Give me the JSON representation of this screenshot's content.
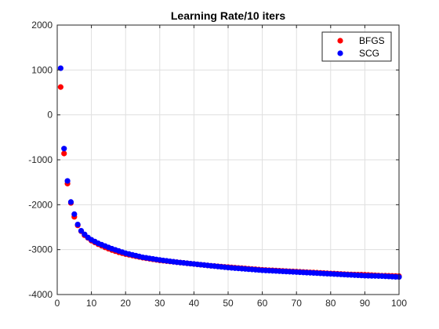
{
  "chart_data": {
    "type": "scatter",
    "title": "Learning Rate/10 iters",
    "xlabel": "",
    "ylabel": "",
    "xlim": [
      0,
      100
    ],
    "ylim": [
      -4000,
      2000
    ],
    "xticks": [
      0,
      10,
      20,
      30,
      40,
      50,
      60,
      70,
      80,
      90,
      100
    ],
    "yticks": [
      -4000,
      -3000,
      -2000,
      -1000,
      0,
      1000,
      2000
    ],
    "grid": true,
    "legend_position": "top-right",
    "series": [
      {
        "name": "BFGS",
        "color": "#ff0000",
        "points": [
          [
            1,
            620
          ],
          [
            2,
            -860
          ],
          [
            3,
            -1530
          ],
          [
            4,
            -1960
          ],
          [
            5,
            -2270
          ],
          [
            6,
            -2460
          ],
          [
            7,
            -2590
          ],
          [
            8,
            -2680
          ],
          [
            9,
            -2740
          ],
          [
            10,
            -2800
          ],
          [
            12,
            -2880
          ],
          [
            14,
            -2950
          ],
          [
            16,
            -3010
          ],
          [
            18,
            -3060
          ],
          [
            20,
            -3100
          ],
          [
            25,
            -3180
          ],
          [
            30,
            -3240
          ],
          [
            35,
            -3280
          ],
          [
            40,
            -3320
          ],
          [
            45,
            -3360
          ],
          [
            50,
            -3390
          ],
          [
            55,
            -3420
          ],
          [
            60,
            -3450
          ],
          [
            65,
            -3470
          ],
          [
            70,
            -3490
          ],
          [
            75,
            -3510
          ],
          [
            80,
            -3530
          ],
          [
            85,
            -3550
          ],
          [
            90,
            -3560
          ],
          [
            95,
            -3580
          ],
          [
            100,
            -3590
          ]
        ]
      },
      {
        "name": "SCG",
        "color": "#0000ff",
        "points": [
          [
            1,
            1040
          ],
          [
            2,
            -750
          ],
          [
            3,
            -1470
          ],
          [
            4,
            -1940
          ],
          [
            5,
            -2210
          ],
          [
            6,
            -2440
          ],
          [
            7,
            -2580
          ],
          [
            8,
            -2660
          ],
          [
            9,
            -2730
          ],
          [
            10,
            -2780
          ],
          [
            12,
            -2860
          ],
          [
            14,
            -2920
          ],
          [
            16,
            -2980
          ],
          [
            18,
            -3030
          ],
          [
            20,
            -3080
          ],
          [
            25,
            -3170
          ],
          [
            30,
            -3230
          ],
          [
            35,
            -3280
          ],
          [
            40,
            -3320
          ],
          [
            45,
            -3360
          ],
          [
            50,
            -3400
          ],
          [
            55,
            -3430
          ],
          [
            60,
            -3460
          ],
          [
            65,
            -3480
          ],
          [
            70,
            -3500
          ],
          [
            75,
            -3520
          ],
          [
            80,
            -3540
          ],
          [
            85,
            -3560
          ],
          [
            90,
            -3580
          ],
          [
            95,
            -3590
          ],
          [
            100,
            -3610
          ]
        ]
      }
    ]
  }
}
